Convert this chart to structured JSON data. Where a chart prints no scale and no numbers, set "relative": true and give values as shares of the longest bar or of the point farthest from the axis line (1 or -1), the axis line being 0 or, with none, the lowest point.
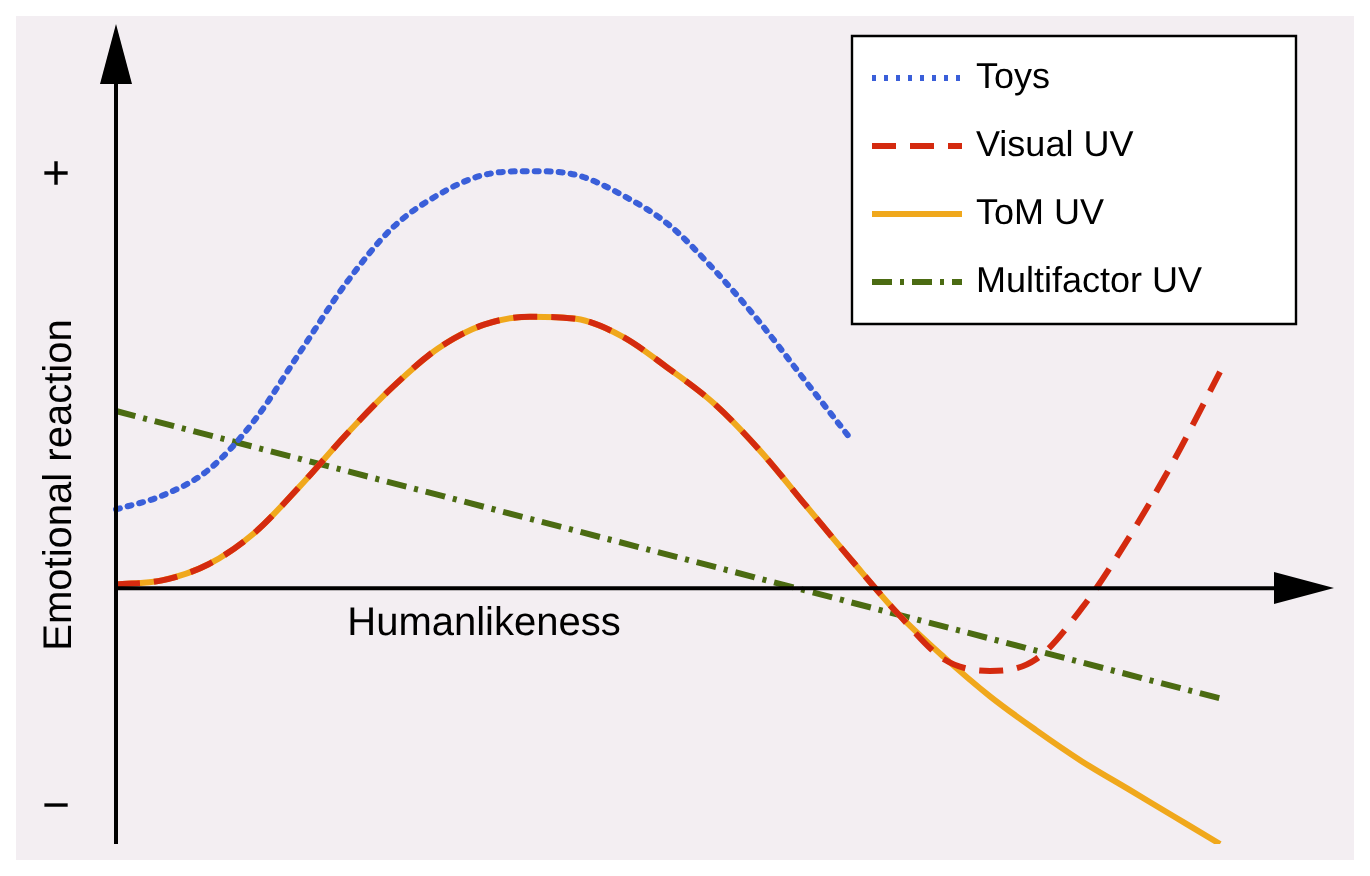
{
  "chart_data": {
    "type": "line",
    "relative": true,
    "xlabel": "Humanlikeness",
    "ylabel": "Emotional reaction",
    "annotations": [
      "+",
      "−"
    ],
    "categories": [
      null,
      null,
      null,
      null,
      null,
      null,
      null,
      null,
      null,
      null,
      null,
      null,
      null,
      null,
      null,
      null,
      null,
      null,
      null,
      null,
      null,
      null,
      null,
      null,
      null
    ],
    "series": [
      {
        "name": "Toys",
        "color": "#3a5fd9",
        "line_style": "dotted",
        "values": [
          0.189,
          0.222,
          0.283,
          0.401,
          0.566,
          0.731,
          0.863,
          0.943,
          0.991,
          1.0,
          0.991,
          0.943,
          0.873,
          0.764,
          0.637,
          0.495,
          0.354,
          null,
          null,
          null,
          null,
          null,
          null,
          null,
          null
        ]
      },
      {
        "name": "Visual UV",
        "color": "#d42a0f",
        "line_style": "dashed",
        "values": [
          0.009,
          0.019,
          0.057,
          0.132,
          0.245,
          0.368,
          0.481,
          0.575,
          0.632,
          0.651,
          0.646,
          0.604,
          0.528,
          0.443,
          0.33,
          0.198,
          0.066,
          -0.061,
          -0.17,
          -0.198,
          -0.17,
          -0.047,
          0.118,
          0.307,
          0.519
        ]
      },
      {
        "name": "ToM UV",
        "color": "#f0a81c",
        "line_style": "solid",
        "values": [
          0.009,
          0.019,
          0.057,
          0.132,
          0.245,
          0.368,
          0.481,
          0.575,
          0.632,
          0.651,
          0.646,
          0.604,
          0.528,
          0.443,
          0.33,
          0.198,
          0.066,
          -0.061,
          -0.165,
          -0.259,
          -0.34,
          -0.415,
          -0.481,
          -0.547,
          -0.613
        ]
      },
      {
        "name": "Multifactor UV",
        "color": "#4b6b12",
        "line_style": "dashdot",
        "values": [
          0.425,
          null,
          null,
          null,
          null,
          null,
          null,
          null,
          null,
          null,
          null,
          null,
          null,
          null,
          null,
          null,
          null,
          null,
          null,
          null,
          null,
          null,
          null,
          null,
          -0.264
        ]
      }
    ],
    "legend": "top right",
    "marker": "none"
  }
}
